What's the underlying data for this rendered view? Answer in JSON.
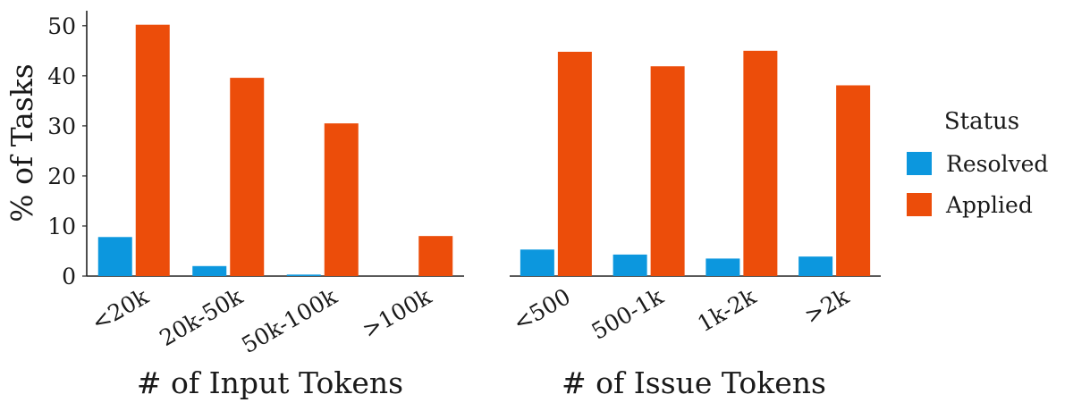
{
  "chart_data": [
    {
      "type": "bar",
      "xlabel": "# of Input Tokens",
      "ylabel": "% of Tasks",
      "categories": [
        "<20k",
        "20k-50k",
        "50k-100k",
        ">100k"
      ],
      "series": [
        {
          "name": "Resolved",
          "values": [
            7.8,
            2.0,
            0.3,
            0.0
          ]
        },
        {
          "name": "Applied",
          "values": [
            50.2,
            39.6,
            30.5,
            8.0
          ]
        }
      ],
      "ylim": [
        0,
        53
      ],
      "yticks": [
        0,
        10,
        20,
        30,
        40,
        50
      ]
    },
    {
      "type": "bar",
      "xlabel": "# of Issue Tokens",
      "ylabel": "",
      "categories": [
        "<500",
        "500-1k",
        "1k-2k",
        ">2k"
      ],
      "series": [
        {
          "name": "Resolved",
          "values": [
            5.3,
            4.3,
            3.5,
            3.9
          ]
        },
        {
          "name": "Applied",
          "values": [
            44.8,
            41.9,
            45.0,
            38.1
          ]
        }
      ],
      "ylim": [
        0,
        53
      ]
    }
  ],
  "legend": {
    "title": "Status",
    "items": [
      {
        "label": "Resolved",
        "color": "#0c97de"
      },
      {
        "label": "Applied",
        "color": "#ec4d0a"
      }
    ],
    "position": "right"
  },
  "colors": {
    "Resolved": "#0c97de",
    "Applied": "#ec4d0a",
    "axis": "#222222"
  }
}
